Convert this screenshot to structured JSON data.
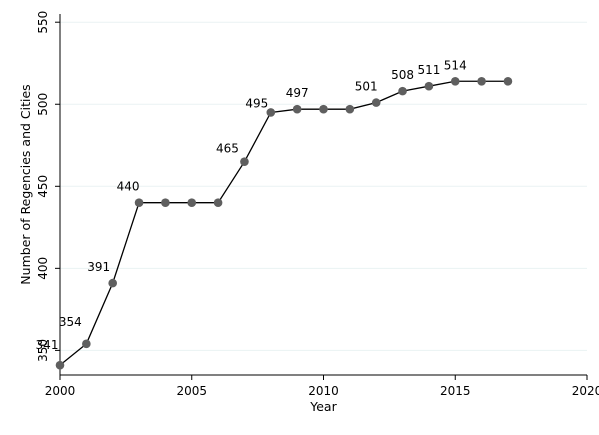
{
  "chart_data": {
    "type": "line",
    "title": "",
    "xlabel": "Year",
    "ylabel": "Number of Regencies and Cities",
    "x": [
      2000,
      2001,
      2002,
      2003,
      2004,
      2005,
      2006,
      2007,
      2008,
      2009,
      2010,
      2011,
      2012,
      2013,
      2014,
      2015,
      2016,
      2017
    ],
    "series": [
      {
        "values": [
          341,
          354,
          391,
          440,
          440,
          440,
          440,
          465,
          495,
          497,
          497,
          497,
          501,
          508,
          511,
          514,
          514,
          514
        ]
      }
    ],
    "data_labels": [
      {
        "x": 2000,
        "text": "341"
      },
      {
        "x": 2001,
        "text": "354"
      },
      {
        "x": 2002,
        "text": "391"
      },
      {
        "x": 2003,
        "text": "440"
      },
      {
        "x": 2007,
        "text": "465"
      },
      {
        "x": 2008,
        "text": "495"
      },
      {
        "x": 2009,
        "text": "497"
      },
      {
        "x": 2012,
        "text": "501"
      },
      {
        "x": 2013,
        "text": "508"
      },
      {
        "x": 2014,
        "text": "511"
      },
      {
        "x": 2015,
        "text": "514"
      }
    ],
    "xlim": [
      2000,
      2020
    ],
    "ylim": [
      335,
      555
    ],
    "xticks": [
      2000,
      2005,
      2010,
      2015,
      2020
    ],
    "yticks": [
      350,
      400,
      450,
      500,
      550
    ],
    "grid": true,
    "legend": "none",
    "colors": {
      "line": "#000000",
      "marker": "#5f5f5f",
      "grid": "#eaf2f3",
      "background": "#ffffff"
    }
  }
}
